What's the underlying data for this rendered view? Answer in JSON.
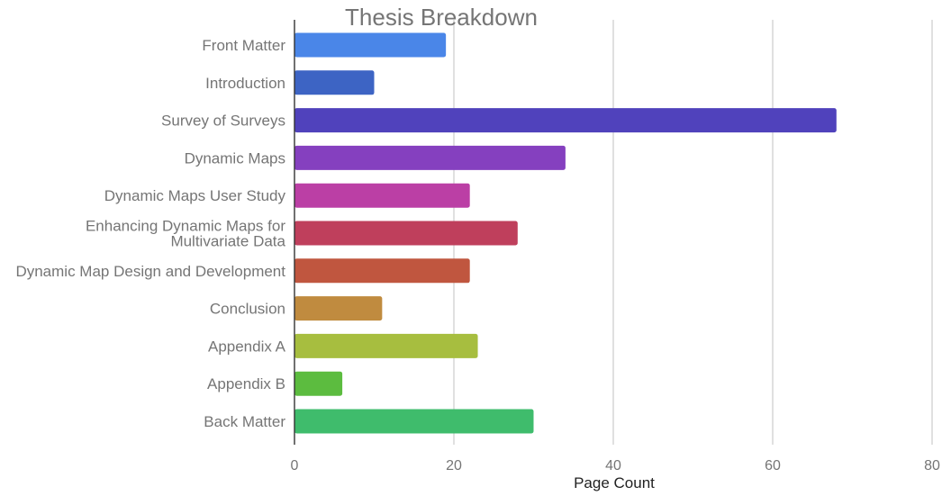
{
  "chart_data": {
    "type": "bar",
    "orientation": "horizontal",
    "title": "Thesis Breakdown",
    "xlabel": "Page Count",
    "ylabel": "",
    "xlim": [
      0,
      80
    ],
    "xticks": [
      0,
      20,
      40,
      60,
      80
    ],
    "grid": true,
    "legend": "none",
    "categories": [
      "Front Matter",
      "Introduction",
      "Survey of Surveys",
      "Dynamic Maps",
      "Dynamic Maps User Study",
      [
        "Enhancing Dynamic Maps for",
        "Multivariate Data"
      ],
      "Dynamic Map Design and Development",
      "Conclusion",
      "Appendix A",
      "Appendix B",
      "Back Matter"
    ],
    "values": [
      19,
      10,
      68,
      34,
      22,
      28,
      22,
      11,
      23,
      6,
      30
    ],
    "colors": [
      "#4a86e8",
      "#3d64c4",
      "#5042bc",
      "#8540bf",
      "#bb3fa5",
      "#bf3f5c",
      "#c0563f",
      "#c08b3f",
      "#a7be3f",
      "#5cbc3f",
      "#3fbc6c"
    ]
  }
}
